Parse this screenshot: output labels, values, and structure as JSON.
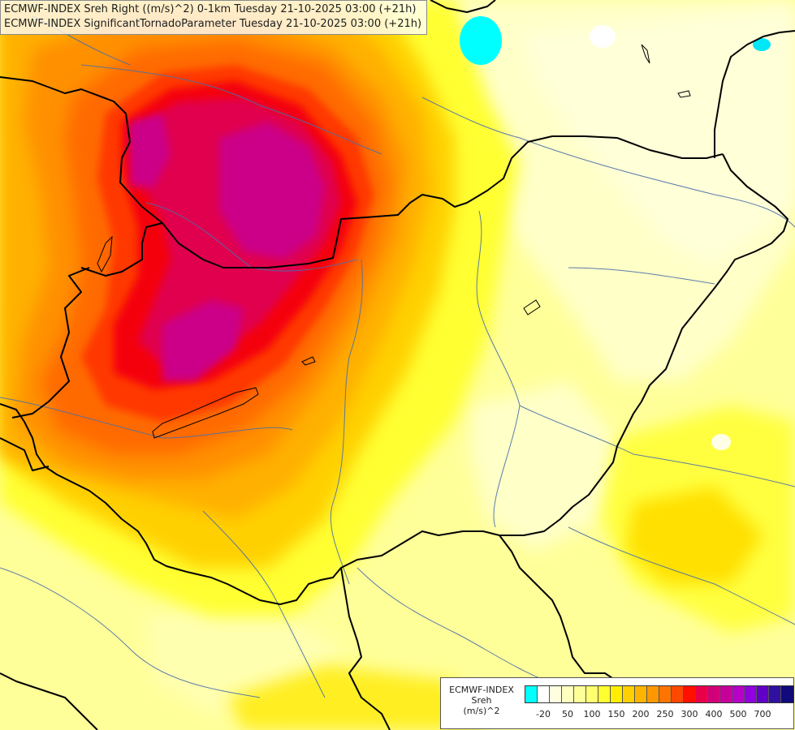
{
  "header": {
    "line1": "ECMWF-INDEX Sreh Right ((m/s)^2) 0-1km Tuesday 21-10-2025 03:00 (+21h)",
    "line2": "ECMWF-INDEX SignificantTornadoParameter Tuesday 21-10-2025 03:00 (+21h)"
  },
  "legend": {
    "model": "ECMWF-INDEX",
    "parameter": "Sreh",
    "unit": "(m/s)^2",
    "colors": [
      "#00ffff",
      "#ffffff",
      "#ffffe0",
      "#ffffc0",
      "#ffff9a",
      "#ffff70",
      "#ffff30",
      "#ffee00",
      "#ffd000",
      "#ffb400",
      "#ff9800",
      "#ff7400",
      "#ff4800",
      "#ff1000",
      "#e8004a",
      "#d20078",
      "#c8009a",
      "#b800c8",
      "#9000e0",
      "#6000c8",
      "#3010a0",
      "#100a7a"
    ],
    "ticks": [
      {
        "label": "-20",
        "index": 1
      },
      {
        "label": "50",
        "index": 3
      },
      {
        "label": "100",
        "index": 5
      },
      {
        "label": "150",
        "index": 7
      },
      {
        "label": "200",
        "index": 9
      },
      {
        "label": "250",
        "index": 11
      },
      {
        "label": "300",
        "index": 13
      },
      {
        "label": "400",
        "index": 15
      },
      {
        "label": "500",
        "index": 17
      },
      {
        "label": "700",
        "index": 19
      }
    ]
  },
  "map": {
    "field": "Sreh Right 0-1km",
    "features": [
      "max-sreh-core-north",
      "max-sreh-core-south",
      "negative-sreh-spot-north",
      "negative-sreh-spot-northeast"
    ]
  }
}
